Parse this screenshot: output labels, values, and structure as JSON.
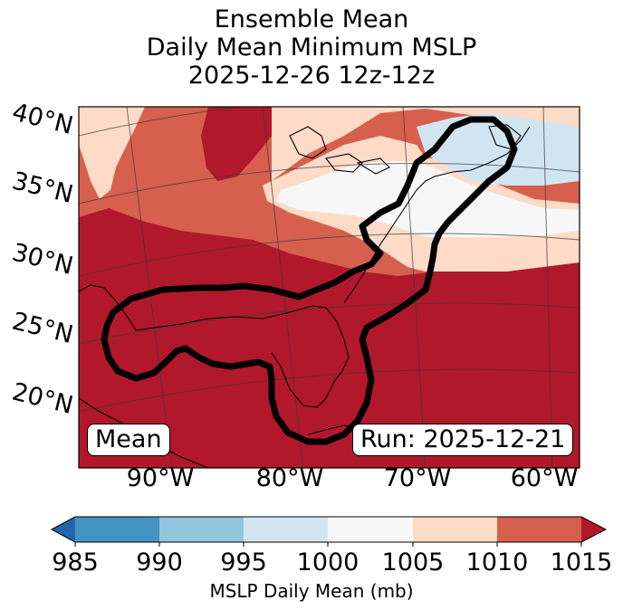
{
  "title": {
    "line1": "Ensemble Mean",
    "line2": "Daily Mean Minimum MSLP",
    "line3": "2025-12-26 12z-12z"
  },
  "map": {
    "lat_labels": [
      "40°N",
      "35°N",
      "30°N",
      "25°N",
      "20°N"
    ],
    "lon_labels": [
      "90°W",
      "80°W",
      "70°W",
      "60°W"
    ],
    "mean_box": "Mean",
    "run_box": "Run: 2025-12-21",
    "outline_color": "#000000"
  },
  "colorbar": {
    "ticks": [
      "985",
      "990",
      "995",
      "1000",
      "1005",
      "1010",
      "1015"
    ],
    "label": "MSLP Daily Mean (mb)",
    "colors": {
      "under": "#2166ac",
      "c985": "#4393c3",
      "c990": "#92c5de",
      "c995": "#d1e5f0",
      "c1000": "#f7f7f7",
      "c1005": "#fddbc7",
      "c1010": "#d6604d",
      "over": "#b2182b"
    }
  }
}
